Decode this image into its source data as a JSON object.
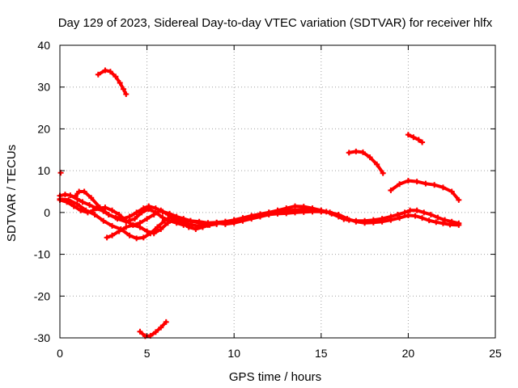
{
  "chart_data": {
    "type": "scatter",
    "title": "Day 129 of 2023, Sidereal Day-to-day VTEC variation (SDTVAR) for receiver hlfx",
    "xlabel": "GPS time / hours",
    "ylabel": "SDTVAR / TECUs",
    "xlim": [
      0,
      25
    ],
    "ylim": [
      -30,
      40
    ],
    "xticks": [
      0,
      5,
      10,
      15,
      20,
      25
    ],
    "yticks": [
      -30,
      -20,
      -10,
      0,
      10,
      20,
      30,
      40
    ],
    "grid": true,
    "color": "#ff0000",
    "series": [
      {
        "name": "s1",
        "x": [
          2.2,
          2.6,
          2.9,
          3.2,
          3.45,
          3.65,
          3.8
        ],
        "y": [
          33,
          34,
          33.7,
          32.5,
          31,
          29.5,
          28.3
        ]
      },
      {
        "name": "s2",
        "x": [
          4.6,
          4.9,
          5.2,
          5.5,
          5.8,
          6.1
        ],
        "y": [
          -28.5,
          -29.6,
          -29.5,
          -28.6,
          -27.5,
          -26.2
        ]
      },
      {
        "name": "s3",
        "x": [
          0.05
        ],
        "y": [
          9.5
        ]
      },
      {
        "name": "s4",
        "x": [
          16.6,
          17.0,
          17.4,
          17.8,
          18.2,
          18.55
        ],
        "y": [
          14.3,
          14.6,
          14.4,
          13.2,
          11.5,
          9.4
        ]
      },
      {
        "name": "s5",
        "x": [
          20.0,
          20.3,
          20.6,
          20.8
        ],
        "y": [
          18.6,
          18.0,
          17.4,
          16.8
        ]
      },
      {
        "name": "s6",
        "x": [
          19.0,
          19.5,
          20.0,
          20.5,
          21.0,
          21.5,
          22.0,
          22.5,
          22.9
        ],
        "y": [
          5.3,
          6.8,
          7.6,
          7.4,
          6.9,
          6.6,
          6.0,
          5.0,
          3.0
        ]
      },
      {
        "name": "s7",
        "x": [
          0.0,
          0.3,
          0.6,
          1.0,
          1.3,
          1.7,
          2.1,
          2.5,
          2.8,
          3.2,
          3.6,
          4.0,
          4.4,
          4.8,
          5.1,
          5.5,
          5.9,
          6.3,
          6.7,
          7.1,
          7.5,
          8.0,
          8.5,
          9.0,
          9.5,
          10.0,
          10.5,
          11.0,
          11.5,
          12.0,
          12.5,
          13.0,
          13.5,
          14.0,
          14.5,
          15.0,
          15.3,
          15.6,
          16.0,
          16.3,
          16.6,
          17.0,
          17.5,
          18.0,
          18.5,
          19.0,
          19.4,
          19.8,
          20.1,
          20.5,
          20.9,
          21.3,
          21.7,
          22.1,
          22.5,
          22.9
        ],
        "y": [
          4.0,
          4.3,
          4.1,
          3.2,
          2.5,
          1.8,
          1.0,
          0.3,
          -0.5,
          -1.2,
          -1.5,
          -1.0,
          0.0,
          1.0,
          1.5,
          1.0,
          0.2,
          -0.3,
          -1.0,
          -1.5,
          -2.0,
          -2.5,
          -2.7,
          -2.5,
          -2.2,
          -2.0,
          -1.5,
          -1.0,
          -0.5,
          0.0,
          0.5,
          1.0,
          1.5,
          1.4,
          1.0,
          0.5,
          0.2,
          -0.3,
          -1.0,
          -1.6,
          -1.8,
          -2.0,
          -2.0,
          -1.8,
          -1.5,
          -1.0,
          -0.5,
          0.0,
          0.5,
          0.5,
          0.0,
          -0.5,
          -1.2,
          -1.8,
          -2.2,
          -2.6
        ]
      },
      {
        "name": "s8",
        "x": [
          0.0,
          0.5,
          1.0,
          1.5,
          2.0,
          2.5,
          3.0,
          3.5,
          4.0,
          4.4,
          4.8,
          5.2,
          5.6,
          6.0,
          6.4,
          6.8,
          7.2,
          7.6,
          8.0,
          8.5,
          9.0,
          9.5,
          10.0,
          10.5,
          11.0,
          11.5,
          12.0,
          12.5,
          13.0,
          13.5,
          14.0,
          14.5,
          15.0,
          15.5,
          16.0,
          16.5,
          17.0,
          17.5,
          18.0,
          18.5,
          19.0,
          19.5,
          20.0,
          20.4,
          20.8,
          21.2,
          21.6,
          22.0,
          22.4,
          22.9
        ],
        "y": [
          3.2,
          3.0,
          2.0,
          0.5,
          -0.5,
          -2.0,
          -3.2,
          -4.0,
          -5.5,
          -6.2,
          -6.0,
          -5.0,
          -3.5,
          -2.0,
          -1.0,
          -1.5,
          -2.5,
          -3.0,
          -3.3,
          -3.0,
          -2.5,
          -2.8,
          -2.5,
          -2.0,
          -1.5,
          -1.0,
          -0.5,
          -0.3,
          -0.2,
          0.0,
          0.1,
          0.2,
          0.2,
          0.0,
          -0.5,
          -1.5,
          -2.2,
          -2.5,
          -2.4,
          -2.2,
          -1.8,
          -1.3,
          -0.7,
          -0.8,
          -1.3,
          -1.9,
          -2.3,
          -2.6,
          -2.9,
          -3.0
        ]
      },
      {
        "name": "s9",
        "x": [
          0.0,
          0.4,
          0.8,
          1.2,
          1.6,
          1.9,
          2.2,
          2.6,
          3.0,
          3.4,
          3.8,
          4.2,
          4.6,
          5.0,
          5.4,
          5.8,
          6.2,
          6.6,
          7.0,
          7.5,
          8.0,
          8.5,
          9.0,
          9.5,
          10.0,
          10.5,
          11.0,
          11.5,
          12.0,
          12.5,
          13.0,
          13.5,
          14.0,
          14.5,
          15.0,
          15.5
        ],
        "y": [
          3.0,
          2.5,
          1.5,
          0.5,
          0.0,
          0.5,
          1.0,
          1.2,
          0.5,
          -0.5,
          -2.0,
          -3.0,
          -2.5,
          -1.5,
          -0.5,
          0.5,
          -0.5,
          -1.5,
          -2.0,
          -2.0,
          -2.2,
          -2.5,
          -2.4,
          -2.2,
          -1.8,
          -1.3,
          -0.8,
          -0.4,
          0.0,
          0.2,
          0.4,
          0.6,
          0.7,
          0.5,
          0.3,
          0.0
        ]
      },
      {
        "name": "s10",
        "x": [
          0.9,
          1.1,
          1.4,
          1.8,
          2.3,
          2.8,
          3.3,
          3.8,
          4.3,
          4.7,
          5.1,
          5.5,
          5.9,
          6.3,
          6.7,
          7.1
        ],
        "y": [
          4.0,
          5.0,
          5.0,
          3.5,
          1.2,
          -0.5,
          -1.5,
          -2.2,
          -1.5,
          0.0,
          0.8,
          0.0,
          -1.2,
          -2.0,
          -2.5,
          -3.0
        ]
      },
      {
        "name": "s11",
        "x": [
          2.7,
          3.0,
          3.4,
          3.8,
          4.2,
          4.6,
          5.0,
          5.4,
          5.8,
          6.2,
          6.6,
          7.0,
          7.4,
          7.8,
          8.2,
          8.6,
          9.0
        ],
        "y": [
          -6.0,
          -5.5,
          -4.5,
          -3.5,
          -3.0,
          -3.5,
          -4.5,
          -5.0,
          -4.0,
          -2.5,
          -1.5,
          -2.5,
          -3.5,
          -4.0,
          -3.5,
          -3.0,
          -2.8
        ]
      }
    ]
  }
}
